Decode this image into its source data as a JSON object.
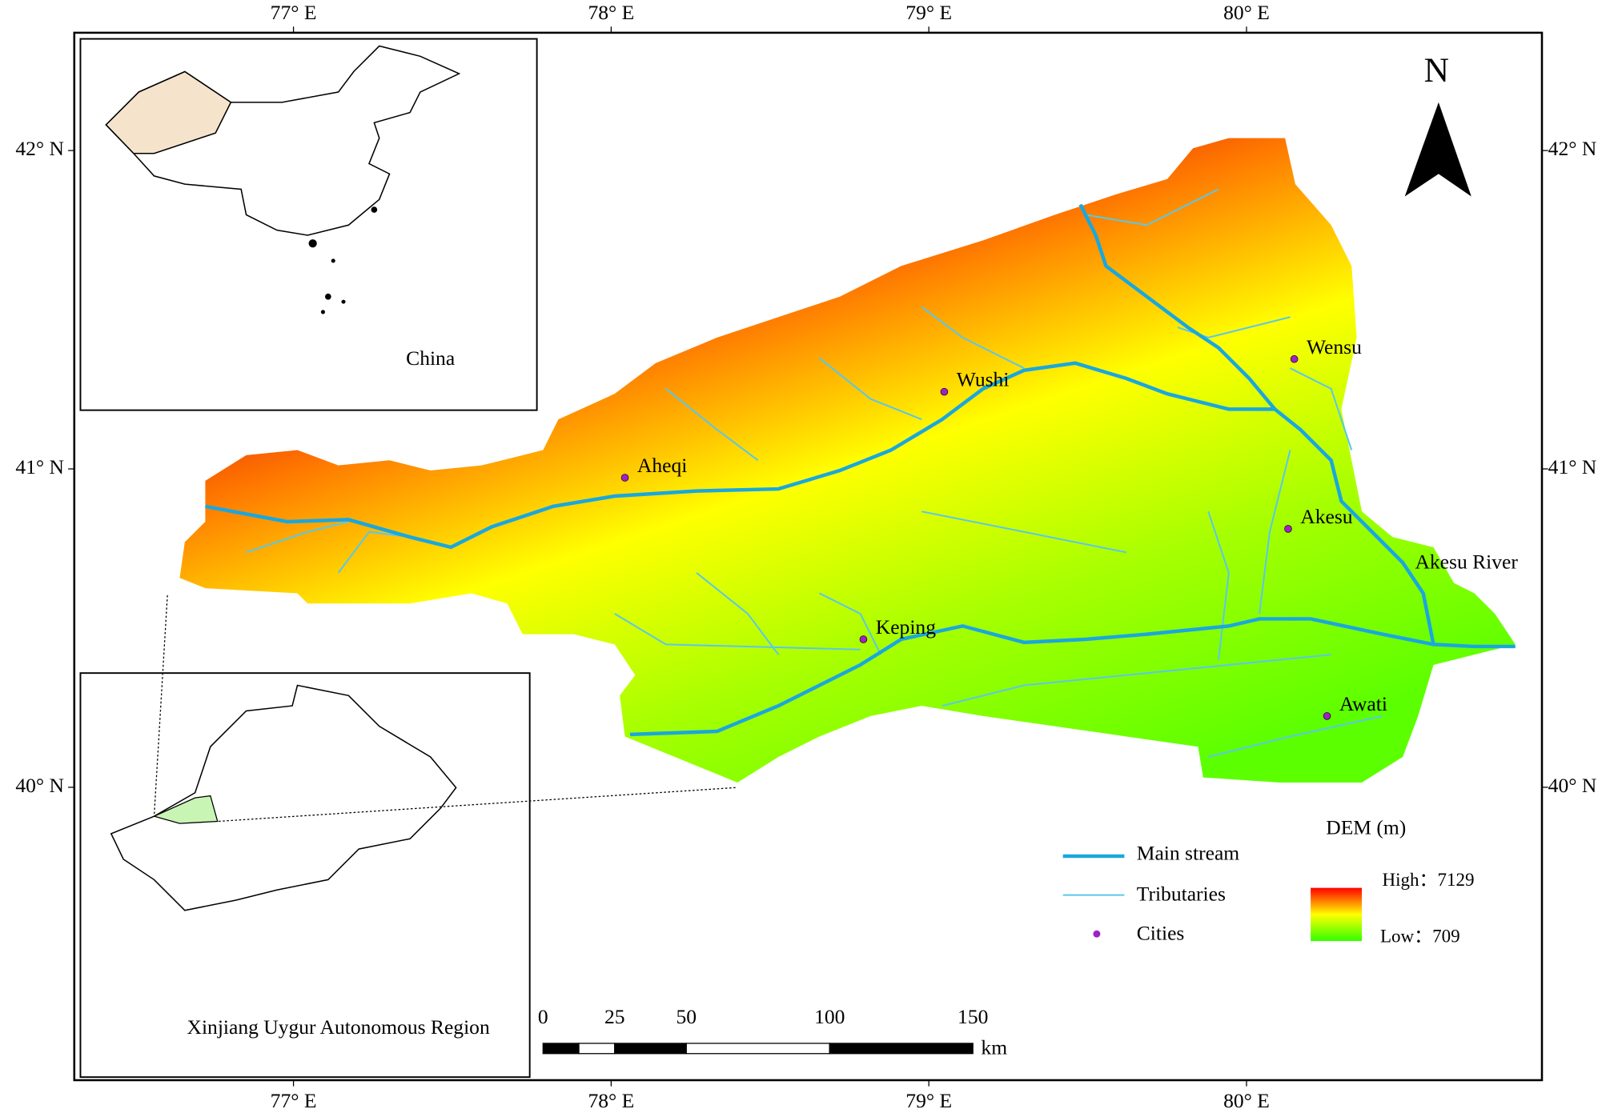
{
  "map": {
    "xlim": [
      76.31,
      80.93
    ],
    "ylim": [
      39.08,
      42.37
    ],
    "xticks": [
      {
        "value": 77,
        "label": "77° E"
      },
      {
        "value": 78,
        "label": "78° E"
      },
      {
        "value": 79,
        "label": "79° E"
      },
      {
        "value": 80,
        "label": "80° E"
      }
    ],
    "yticks": [
      {
        "value": 42,
        "label": "42° N"
      },
      {
        "value": 41,
        "label": "41° N"
      },
      {
        "value": 40,
        "label": "40° N"
      }
    ],
    "north_arrow": "N",
    "cities": [
      "Wushi",
      "Wensu",
      "Aheqi",
      "Akesu",
      "Keping",
      "Awati"
    ],
    "river_label": "Akesu River",
    "legend": {
      "items": [
        "Main stream",
        "Tributaries",
        "Cities"
      ],
      "dem_title": "DEM (m)",
      "high_label": "High：",
      "high_value": 7129,
      "low_label": "Low：",
      "low_value": 709
    },
    "scale_bar": {
      "ticks": [
        0,
        25,
        50,
        100,
        150
      ],
      "unit": "km"
    },
    "insets": [
      "China",
      "Xinjiang Uygur Autonomous Region"
    ]
  }
}
